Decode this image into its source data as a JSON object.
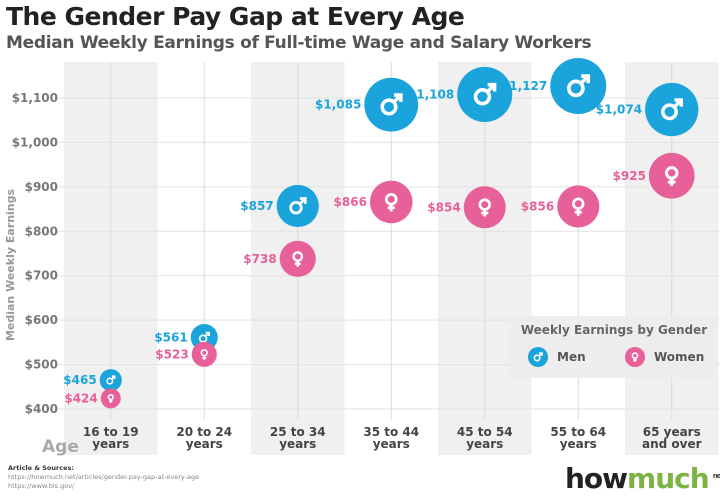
{
  "chart_data": {
    "type": "scatter",
    "title": "The Gender Pay Gap at Every Age",
    "subtitle": "Median Weekly Earnings of Full-time Wage and Salary Workers",
    "xlabel": "Age",
    "ylabel": "Median Weekly Earnings",
    "ylim": [
      400,
      1100
    ],
    "yticks": [
      "$400",
      "$500",
      "$600",
      "$700",
      "$800",
      "$900",
      "$1,000",
      "$1,100"
    ],
    "ytick_values": [
      400,
      500,
      600,
      700,
      800,
      900,
      1000,
      1100
    ],
    "categories": [
      [
        "16 to 19",
        "years"
      ],
      [
        "20 to 24",
        "years"
      ],
      [
        "25 to 34",
        "years"
      ],
      [
        "35 to 44",
        "years"
      ],
      [
        "45 to 54",
        "years"
      ],
      [
        "55 to 64",
        "years"
      ],
      [
        "65 years",
        "and over"
      ]
    ],
    "series": [
      {
        "name": "Men",
        "color": "#1ba3dc",
        "icon": "male-icon",
        "values": [
          465,
          561,
          857,
          1085,
          1108,
          1127,
          1074
        ],
        "labels": [
          "$465",
          "$561",
          "$857",
          "$1,085",
          "$1,108",
          "$1,127",
          "$1,074"
        ]
      },
      {
        "name": "Women",
        "color": "#e8609a",
        "icon": "female-icon",
        "values": [
          424,
          523,
          738,
          866,
          854,
          856,
          925
        ],
        "labels": [
          "$424",
          "$523",
          "$738",
          "$866",
          "$854",
          "$856",
          "$925"
        ]
      }
    ],
    "legend": {
      "title": "Weekly Earnings by Gender",
      "placement": "bottom-right"
    },
    "grid": true
  },
  "footer": {
    "sources_title": "Article & Sources:",
    "sources": [
      "https://howmuch.net/articles/gender-pay-gap-at-every-age",
      "https://www.bls.gov/"
    ],
    "logo": "howmuch",
    "logo_suffix": "net"
  }
}
